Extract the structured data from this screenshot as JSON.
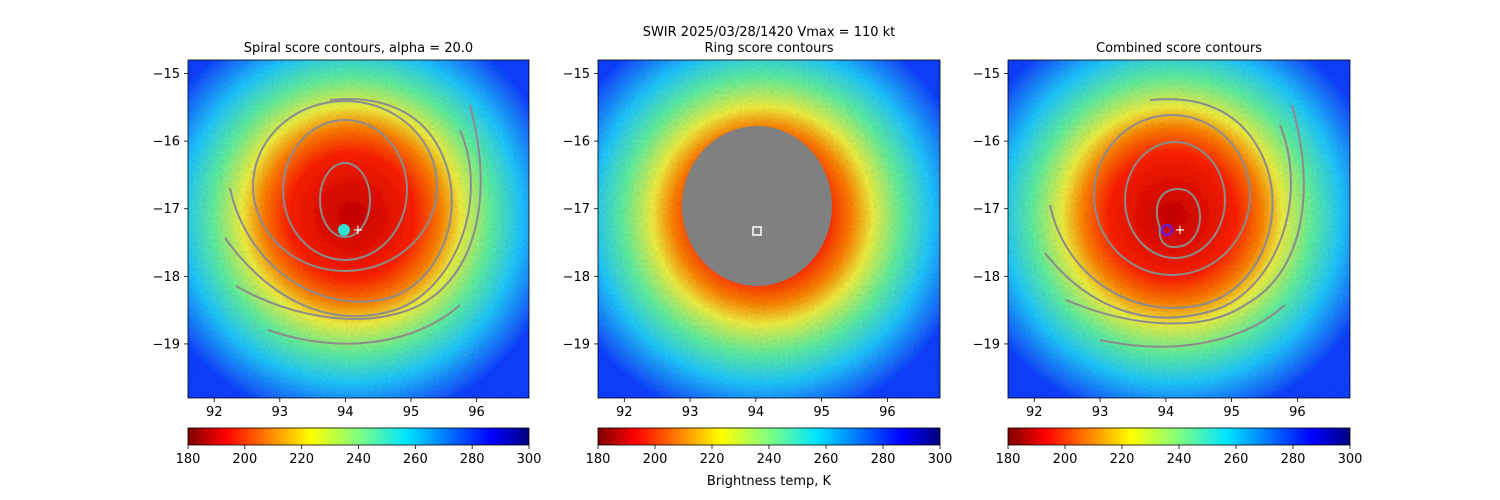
{
  "suptitle": {
    "line1": "SWIR  2025/03/28/1420    Vmax = 110 kt"
  },
  "colorbar_label": "Brightness temp, K",
  "chart_data": [
    {
      "type": "heatmap",
      "title": "Spiral score contours, alpha = 20.0",
      "xlabel": "",
      "ylabel": "",
      "xlim": [
        91.6,
        96.8
      ],
      "ylim": [
        -19.8,
        -14.8
      ],
      "xticks": [
        "92",
        "93",
        "94",
        "95",
        "96"
      ],
      "yticks": [
        "−15",
        "−16",
        "−17",
        "−18",
        "−19"
      ],
      "overlay": "spiral contours",
      "center_marker": {
        "lon": 94.2,
        "lat": -17.3,
        "symbol": "+"
      },
      "colorbar": {
        "range": [
          180,
          300
        ],
        "ticks": [
          "180",
          "200",
          "220",
          "240",
          "260",
          "280",
          "300"
        ],
        "cmap": "jet_r"
      }
    },
    {
      "type": "heatmap",
      "title": "Ring score contours",
      "xlabel": "",
      "ylabel": "",
      "xlim": [
        91.6,
        96.8
      ],
      "ylim": [
        -19.8,
        -14.8
      ],
      "xticks": [
        "92",
        "93",
        "94",
        "95",
        "96"
      ],
      "yticks": [
        "−15",
        "−16",
        "−17",
        "−18",
        "−19"
      ],
      "overlay": "gray ring mask",
      "center_marker": {
        "lon": 94.0,
        "lat": -17.3,
        "symbol": "square"
      },
      "colorbar": {
        "range": [
          180,
          300
        ],
        "ticks": [
          "180",
          "200",
          "220",
          "240",
          "260",
          "280",
          "300"
        ],
        "cmap": "jet_r"
      }
    },
    {
      "type": "heatmap",
      "title": "Combined score contours",
      "xlabel": "",
      "ylabel": "",
      "xlim": [
        91.6,
        96.8
      ],
      "ylim": [
        -19.8,
        -14.8
      ],
      "xticks": [
        "92",
        "93",
        "94",
        "95",
        "96"
      ],
      "yticks": [
        "−15",
        "−16",
        "−17",
        "−18",
        "−19"
      ],
      "overlay": "spiral contours",
      "center_marker": {
        "lon": 94.0,
        "lat": -17.3,
        "symbol": "circle"
      },
      "colorbar": {
        "range": [
          180,
          300
        ],
        "ticks": [
          "180",
          "200",
          "220",
          "240",
          "260",
          "280",
          "300"
        ],
        "cmap": "jet_r"
      }
    }
  ],
  "colors": {
    "contour": "#8c8c8c",
    "mask": "#808080",
    "spiral_marker": "#ffffff",
    "combined_marker": "#6a1bd6"
  }
}
